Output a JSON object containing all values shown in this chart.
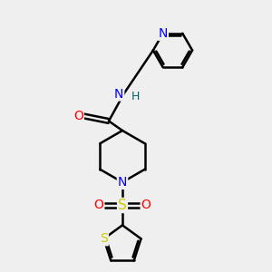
{
  "bg_color": "#efefef",
  "bond_color": "#000000",
  "N_color": "#0000ff",
  "O_color": "#ff0000",
  "S_color": "#cccc00",
  "H_color": "#006060",
  "line_width": 1.8,
  "figsize": [
    3.0,
    3.0
  ],
  "dpi": 100,
  "xlim": [
    0,
    10
  ],
  "ylim": [
    0,
    10
  ]
}
